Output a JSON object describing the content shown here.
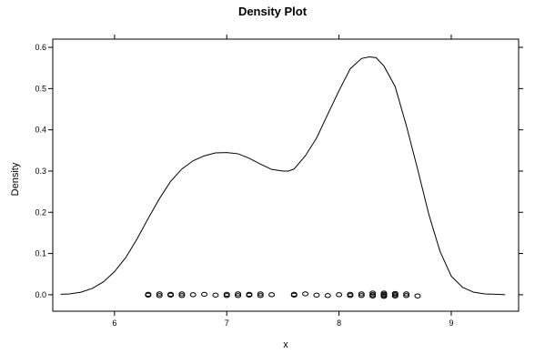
{
  "chart_data": {
    "type": "line",
    "title": "Density Plot",
    "xlabel": "x",
    "ylabel": "Density",
    "xlim": [
      5.45,
      9.6
    ],
    "ylim": [
      -0.04,
      0.62
    ],
    "x_ticks": [
      6,
      7,
      8,
      9
    ],
    "x_tick_labels": [
      "6",
      "7",
      "8",
      "9"
    ],
    "y_ticks": [
      0.0,
      0.1,
      0.2,
      0.3,
      0.4,
      0.5,
      0.6
    ],
    "y_tick_labels": [
      "0.0",
      "0.1",
      "0.2",
      "0.3",
      "0.4",
      "0.5",
      "0.6"
    ],
    "grid": false,
    "legend": "none",
    "series": [
      {
        "x": [
          5.52,
          5.6,
          5.7,
          5.8,
          5.9,
          6.0,
          6.1,
          6.2,
          6.3,
          6.4,
          6.5,
          6.6,
          6.7,
          6.8,
          6.9,
          7.0,
          7.1,
          7.2,
          7.3,
          7.4,
          7.5,
          7.55,
          7.6,
          7.7,
          7.8,
          7.9,
          8.0,
          8.1,
          8.2,
          8.27,
          8.33,
          8.4,
          8.5,
          8.6,
          8.7,
          8.8,
          8.9,
          9.0,
          9.1,
          9.2,
          9.3,
          9.4,
          9.48
        ],
        "y": [
          0.001,
          0.002,
          0.006,
          0.015,
          0.031,
          0.056,
          0.09,
          0.135,
          0.185,
          0.233,
          0.275,
          0.305,
          0.325,
          0.337,
          0.344,
          0.345,
          0.342,
          0.331,
          0.317,
          0.304,
          0.3,
          0.3,
          0.305,
          0.337,
          0.38,
          0.438,
          0.495,
          0.548,
          0.573,
          0.577,
          0.575,
          0.555,
          0.505,
          0.41,
          0.305,
          0.195,
          0.105,
          0.045,
          0.018,
          0.006,
          0.002,
          0.001,
          0.0
        ]
      }
    ],
    "rug": {
      "x": [
        6.3,
        6.3,
        6.4,
        6.4,
        6.5,
        6.5,
        6.6,
        6.6,
        6.7,
        6.8,
        6.9,
        7.0,
        7.0,
        7.1,
        7.1,
        7.2,
        7.2,
        7.3,
        7.3,
        7.4,
        7.6,
        7.6,
        7.7,
        7.8,
        7.9,
        8.0,
        8.1,
        8.1,
        8.2,
        8.2,
        8.3,
        8.3,
        8.3,
        8.4,
        8.4,
        8.4,
        8.4,
        8.5,
        8.5,
        8.5,
        8.6,
        8.6,
        8.7
      ],
      "y": [
        0.001,
        -0.001,
        0.002,
        -0.002,
        0.001,
        -0.001,
        0.002,
        -0.002,
        0.0,
        0.001,
        -0.001,
        0.001,
        -0.002,
        0.002,
        -0.002,
        0.001,
        -0.001,
        0.002,
        -0.002,
        0.0,
        0.001,
        -0.001,
        0.002,
        -0.001,
        -0.002,
        0.0,
        0.001,
        -0.002,
        0.002,
        -0.002,
        0.004,
        0.0,
        -0.003,
        0.004,
        0.001,
        -0.002,
        -0.004,
        0.003,
        0.0,
        -0.003,
        0.002,
        -0.002,
        -0.003
      ]
    }
  }
}
